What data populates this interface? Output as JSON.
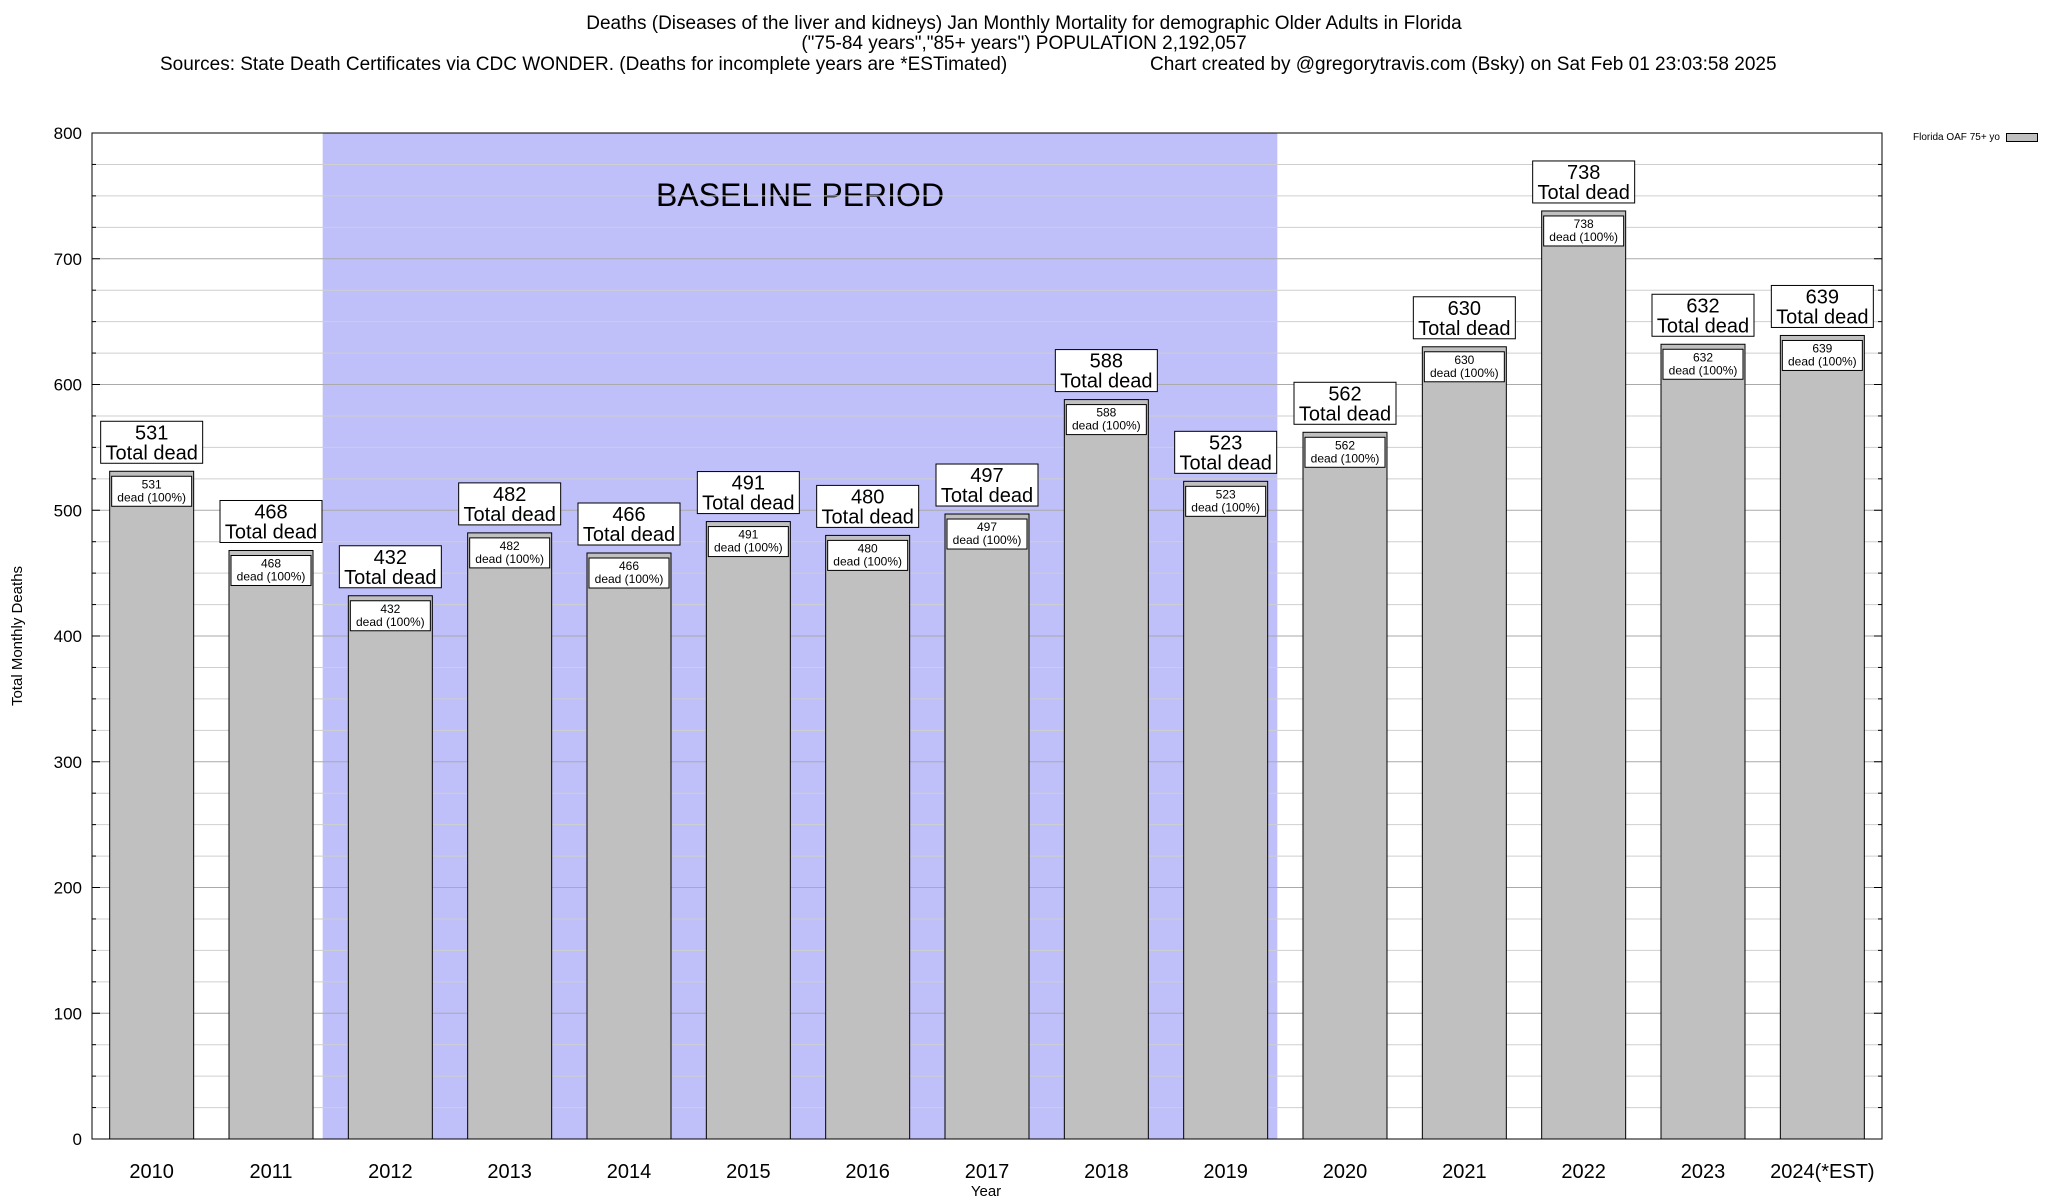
{
  "chart_data": {
    "type": "bar",
    "title": "Deaths (Diseases of the liver and kidneys) Jan Monthly Mortality for demographic Older Adults in Florida",
    "subtitle": "(\"75-84 years\",\"85+ years\") POPULATION 2,192,057",
    "sources": "Sources: State Death Certificates via CDC WONDER. (Deaths for incomplete years are *ESTimated)",
    "credit": "Chart created by @gregorytravis.com (Bsky) on Sat Feb 01 23:03:58 2025",
    "xlabel": "Year",
    "ylabel": "Total Monthly Deaths",
    "ylim": [
      0,
      800
    ],
    "yticks": [
      0,
      100,
      200,
      300,
      400,
      500,
      600,
      700,
      800
    ],
    "categories": [
      "2010",
      "2011",
      "2012",
      "2013",
      "2014",
      "2015",
      "2016",
      "2017",
      "2018",
      "2019",
      "2020",
      "2021",
      "2022",
      "2023",
      "2024(*EST)"
    ],
    "series": [
      {
        "name": "Florida OAF 75+ yo",
        "values": [
          531,
          468,
          432,
          482,
          466,
          491,
          480,
          497,
          588,
          523,
          562,
          630,
          738,
          632,
          639
        ],
        "color": "#c0c0c0"
      }
    ],
    "top_label_suffix": "Total dead",
    "inner_label_suffix": "dead (100%)",
    "baseline": {
      "label": "BASELINE PERIOD",
      "from_category": "2012",
      "to_category": "2019",
      "color": "#bfbff9"
    },
    "grid": true,
    "legend_position": "top-right"
  }
}
